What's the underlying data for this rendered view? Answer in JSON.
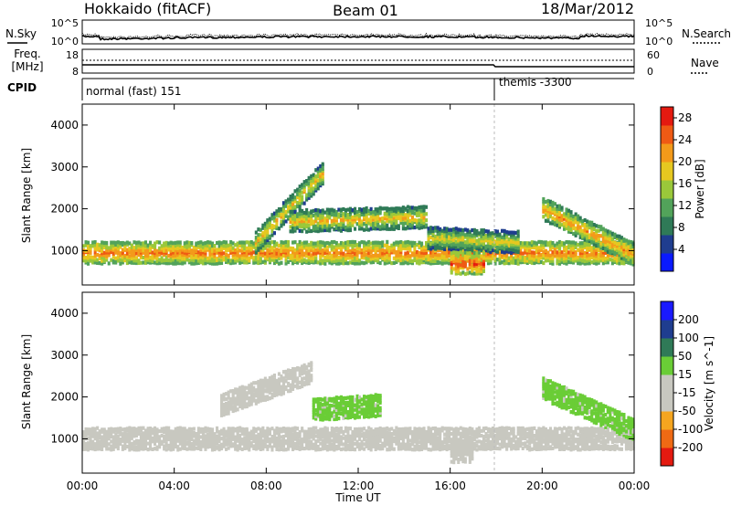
{
  "header": {
    "station": "Hokkaido (fitACF)",
    "beam": "Beam 01",
    "date": "18/Mar/2012"
  },
  "summary_panels": {
    "nsky_label": "N.Sky",
    "nsearch_label": "N.Search",
    "freq_label_line1": "Freq.",
    "freq_label_line2": "[MHz]",
    "nave_label": "Nave",
    "cpid_label": "CPID",
    "noise_ticks": [
      "10^5",
      "10^0"
    ],
    "freq_left_ticks": [
      "18",
      "8"
    ],
    "freq_right_ticks": [
      "60",
      "0"
    ],
    "cpid_segments": [
      {
        "label": "normal (fast) 151",
        "start_hour": 0
      },
      {
        "label": "themis -3300",
        "start_hour": 18
      }
    ]
  },
  "x_axis": {
    "label": "Time UT",
    "ticks": [
      "00:00",
      "04:00",
      "08:00",
      "12:00",
      "16:00",
      "20:00",
      "00:00"
    ],
    "range_hours": [
      0,
      24
    ]
  },
  "colors": {
    "power": [
      "#0a1aff",
      "#1f3d8f",
      "#2f7a57",
      "#52a35a",
      "#9ac83a",
      "#e6c820",
      "#f39a1a",
      "#ef5a14",
      "#e41a10"
    ],
    "velocity": [
      "#e41a10",
      "#ef6a14",
      "#f5a51f",
      "#c8c8c0",
      "#c8c8c0",
      "#6acd36",
      "#2f7a57",
      "#1f3d8f",
      "#1a1aff"
    ],
    "velocity_gray": "#c8c8c0"
  },
  "chart_data": [
    {
      "type": "heatmap",
      "panel": "power",
      "ylabel": "Slant Range [km]",
      "ylim": [
        180,
        4500
      ],
      "yticks": [
        1000,
        2000,
        3000,
        4000
      ],
      "colorbar": {
        "label": "Power [dB]",
        "ticks": [
          4,
          8,
          12,
          16,
          20,
          24,
          28
        ],
        "range": [
          0,
          30
        ]
      },
      "features": [
        {
          "name": "main band",
          "time_hours": [
            0,
            24
          ],
          "range_km_start": 950,
          "range_km_end": 950,
          "value_dB": 24
        },
        {
          "name": "rising band",
          "time_hours": [
            7.5,
            10.5
          ],
          "range_km_start": 1200,
          "range_km_end": 2900,
          "value_dB": 20
        },
        {
          "name": "mid band",
          "time_hours": [
            9,
            15
          ],
          "range_km_start": 1700,
          "range_km_end": 1800,
          "value_dB": 20
        },
        {
          "name": "evening band",
          "time_hours": [
            15,
            19
          ],
          "range_km_start": 1300,
          "range_km_end": 1200,
          "value_dB": 18
        },
        {
          "name": "late arc",
          "time_hours": [
            20,
            24
          ],
          "range_km_start": 2000,
          "range_km_end": 900,
          "value_dB": 22
        },
        {
          "name": "patch",
          "time_hours": [
            16,
            17.5
          ],
          "range_km_start": 700,
          "range_km_end": 700,
          "value_dB": 26
        }
      ]
    },
    {
      "type": "heatmap",
      "panel": "velocity",
      "ylabel": "Slant Range [km]",
      "ylim": [
        180,
        4500
      ],
      "yticks": [
        1000,
        2000,
        3000,
        4000
      ],
      "colorbar": {
        "label": "Velocity [m s^-1]",
        "ticks": [
          200,
          100,
          50,
          15,
          -15,
          -50,
          -100,
          -200
        ],
        "range": [
          -250,
          250
        ]
      },
      "features": [
        {
          "name": "ground scatter",
          "time_hours": [
            0,
            24
          ],
          "range_km_start": 1000,
          "range_km_end": 1000,
          "value_ms": 0
        },
        {
          "name": "morning rise",
          "time_hours": [
            6,
            10
          ],
          "range_km_start": 1800,
          "range_km_end": 2600,
          "value_ms": -60
        },
        {
          "name": "midday green",
          "time_hours": [
            10,
            13
          ],
          "range_km_start": 1700,
          "range_km_end": 1800,
          "value_ms": 40
        },
        {
          "name": "late green",
          "time_hours": [
            20,
            24
          ],
          "range_km_start": 2200,
          "range_km_end": 1200,
          "value_ms": 40
        },
        {
          "name": "orange patch",
          "time_hours": [
            16,
            17
          ],
          "range_km_start": 700,
          "range_km_end": 700,
          "value_ms": -60
        }
      ]
    }
  ]
}
